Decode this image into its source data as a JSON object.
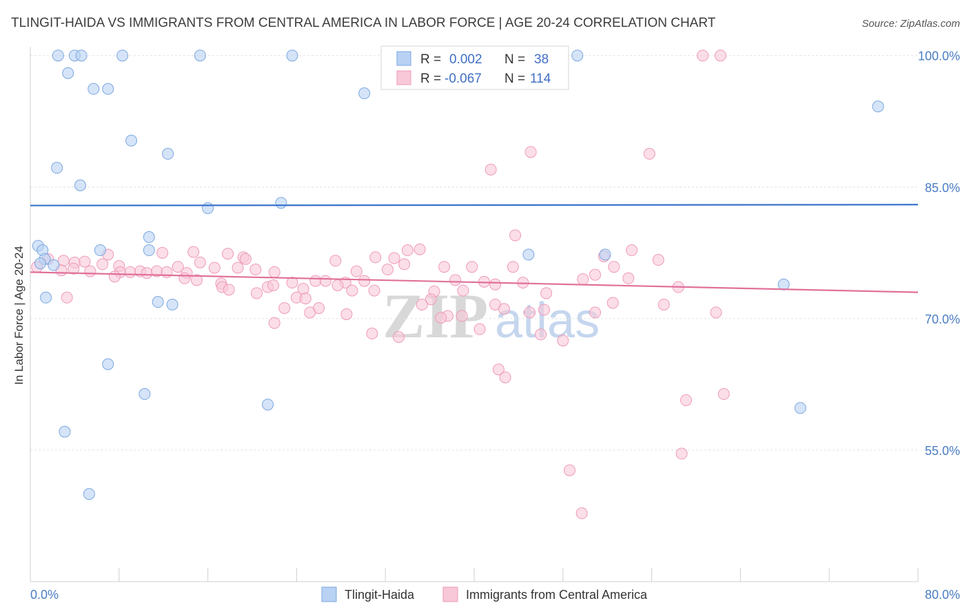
{
  "chart_data": {
    "type": "scatter",
    "title": "TLINGIT-HAIDA VS IMMIGRANTS FROM CENTRAL AMERICA IN LABOR FORCE | AGE 20-24 CORRELATION CHART",
    "source": "Source: ZipAtlas.com",
    "ylabel": "In Labor Force | Age 20-24",
    "xlim": [
      0,
      80
    ],
    "ylim": [
      40,
      101
    ],
    "y_ticks": [
      {
        "value": 100,
        "label": "100.0%"
      },
      {
        "value": 85,
        "label": "85.0%"
      },
      {
        "value": 70,
        "label": "70.0%"
      },
      {
        "value": 55,
        "label": "55.0%"
      }
    ],
    "x_tick_labels": {
      "min": "0.0%",
      "max": "80.0%"
    },
    "watermark": {
      "zip": "ZIP",
      "atlas": "atlas"
    },
    "legend_stats": [
      {
        "r_label": "R =",
        "r_value": "0.002",
        "n_label": "N =",
        "n_value": "38"
      },
      {
        "r_label": "R =",
        "r_value": "-0.067",
        "n_label": "N =",
        "n_value": "114"
      }
    ],
    "series": [
      {
        "name": "Tlingit-Haida",
        "color": "#7aa7e0",
        "fill": "#b9d2f3",
        "trend_color": "#3a73cc",
        "trend": [
          [
            0,
            82.9
          ],
          [
            80,
            83.0
          ]
        ],
        "points": [
          [
            2.5,
            100
          ],
          [
            4.0,
            100
          ],
          [
            4.6,
            100
          ],
          [
            8.3,
            100
          ],
          [
            15.3,
            100
          ],
          [
            23.6,
            100
          ],
          [
            49.3,
            100
          ],
          [
            3.4,
            98
          ],
          [
            5.7,
            96.2
          ],
          [
            7.0,
            96.2
          ],
          [
            30.1,
            95.7
          ],
          [
            76.4,
            94.2
          ],
          [
            9.1,
            90.3
          ],
          [
            12.4,
            88.8
          ],
          [
            2.4,
            87.2
          ],
          [
            4.5,
            85.2
          ],
          [
            16.0,
            82.6
          ],
          [
            22.6,
            83.2
          ],
          [
            10.7,
            79.3
          ],
          [
            0.7,
            78.3
          ],
          [
            1.1,
            77.8
          ],
          [
            6.3,
            77.8
          ],
          [
            10.7,
            77.8
          ],
          [
            44.9,
            77.3
          ],
          [
            51.8,
            77.3
          ],
          [
            2.1,
            76.1
          ],
          [
            67.9,
            73.9
          ],
          [
            1.4,
            72.4
          ],
          [
            11.5,
            71.9
          ],
          [
            12.8,
            71.6
          ],
          [
            7.0,
            64.8
          ],
          [
            10.3,
            61.4
          ],
          [
            21.4,
            60.2
          ],
          [
            69.4,
            59.8
          ],
          [
            3.1,
            57.1
          ],
          [
            5.3,
            50.0
          ],
          [
            1.3,
            76.8
          ],
          [
            0.9,
            76.3
          ]
        ]
      },
      {
        "name": "Immigrants from Central America",
        "color": "#ee9ab8",
        "fill": "#f8c8d8",
        "trend_color": "#e0709a",
        "trend": [
          [
            0,
            75.3
          ],
          [
            80,
            73.0
          ]
        ],
        "points": [
          [
            47.2,
            100
          ],
          [
            47.6,
            100
          ],
          [
            60.6,
            100
          ],
          [
            62.2,
            100
          ],
          [
            45.1,
            89.0
          ],
          [
            55.8,
            88.8
          ],
          [
            41.5,
            87.0
          ],
          [
            43.7,
            79.5
          ],
          [
            34.0,
            77.8
          ],
          [
            54.2,
            77.8
          ],
          [
            7.0,
            77.3
          ],
          [
            11.9,
            77.5
          ],
          [
            14.7,
            77.6
          ],
          [
            17.8,
            77.4
          ],
          [
            19.2,
            77.0
          ],
          [
            1.6,
            76.8
          ],
          [
            3.0,
            76.6
          ],
          [
            4.0,
            76.4
          ],
          [
            4.9,
            76.5
          ],
          [
            6.5,
            76.2
          ],
          [
            8.0,
            76.0
          ],
          [
            13.3,
            75.9
          ],
          [
            15.3,
            76.4
          ],
          [
            16.6,
            75.8
          ],
          [
            18.7,
            75.8
          ],
          [
            19.4,
            76.8
          ],
          [
            27.5,
            76.6
          ],
          [
            32.8,
            76.9
          ],
          [
            33.7,
            76.2
          ],
          [
            37.3,
            75.9
          ],
          [
            51.7,
            77.1
          ],
          [
            56.6,
            76.7
          ],
          [
            52.6,
            75.9
          ],
          [
            0.6,
            75.9
          ],
          [
            2.8,
            75.5
          ],
          [
            5.4,
            75.4
          ],
          [
            8.1,
            75.3
          ],
          [
            9.0,
            75.3
          ],
          [
            9.9,
            75.4
          ],
          [
            10.5,
            75.2
          ],
          [
            11.4,
            75.4
          ],
          [
            12.3,
            75.3
          ],
          [
            14.1,
            75.2
          ],
          [
            20.3,
            75.6
          ],
          [
            22.0,
            75.3
          ],
          [
            29.4,
            75.4
          ],
          [
            32.2,
            75.6
          ],
          [
            3.9,
            75.7
          ],
          [
            13.9,
            74.6
          ],
          [
            15.0,
            74.4
          ],
          [
            7.6,
            74.8
          ],
          [
            25.7,
            74.3
          ],
          [
            26.6,
            74.3
          ],
          [
            28.4,
            74.1
          ],
          [
            30.1,
            74.3
          ],
          [
            38.3,
            74.4
          ],
          [
            40.9,
            74.2
          ],
          [
            41.9,
            73.9
          ],
          [
            44.4,
            74.1
          ],
          [
            53.9,
            74.6
          ],
          [
            17.2,
            74.0
          ],
          [
            21.4,
            73.6
          ],
          [
            21.9,
            73.8
          ],
          [
            23.6,
            74.1
          ],
          [
            24.6,
            73.4
          ],
          [
            27.7,
            73.8
          ],
          [
            29.0,
            73.2
          ],
          [
            31.0,
            73.2
          ],
          [
            36.4,
            73.1
          ],
          [
            39.0,
            73.2
          ],
          [
            46.5,
            72.9
          ],
          [
            17.3,
            73.6
          ],
          [
            17.9,
            73.3
          ],
          [
            20.4,
            72.9
          ],
          [
            24.0,
            72.4
          ],
          [
            36.1,
            72.2
          ],
          [
            41.9,
            71.6
          ],
          [
            57.1,
            71.6
          ],
          [
            22.9,
            71.2
          ],
          [
            26.0,
            71.2
          ],
          [
            35.3,
            71.6
          ],
          [
            42.7,
            71.1
          ],
          [
            46.3,
            71.0
          ],
          [
            25.2,
            70.7
          ],
          [
            28.5,
            70.5
          ],
          [
            37.6,
            70.3
          ],
          [
            37.0,
            70.1
          ],
          [
            38.9,
            70.3
          ],
          [
            45.0,
            70.7
          ],
          [
            50.9,
            70.7
          ],
          [
            61.8,
            70.7
          ],
          [
            22.0,
            69.5
          ],
          [
            30.8,
            68.3
          ],
          [
            33.2,
            67.9
          ],
          [
            40.5,
            68.8
          ],
          [
            46.0,
            68.2
          ],
          [
            48.0,
            67.5
          ],
          [
            3.3,
            72.4
          ],
          [
            42.2,
            64.2
          ],
          [
            42.8,
            63.3
          ],
          [
            59.1,
            60.7
          ],
          [
            62.5,
            61.4
          ],
          [
            58.7,
            54.6
          ],
          [
            48.6,
            52.7
          ],
          [
            49.7,
            47.8
          ],
          [
            31.1,
            77.0
          ],
          [
            35.1,
            77.9
          ],
          [
            39.8,
            75.9
          ],
          [
            43.5,
            75.9
          ],
          [
            49.8,
            74.5
          ],
          [
            50.9,
            75.0
          ],
          [
            58.4,
            73.6
          ],
          [
            24.8,
            72.3
          ],
          [
            52.5,
            71.8
          ]
        ]
      }
    ]
  },
  "bottom_legend": [
    {
      "label": "Tlingit-Haida"
    },
    {
      "label": "Immigrants from Central America"
    }
  ]
}
